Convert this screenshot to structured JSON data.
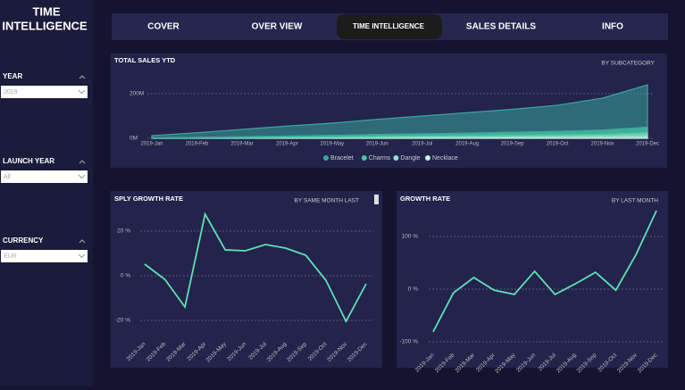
{
  "sidebar": {
    "title_lines": [
      "TIME",
      "INTELLIGENCE"
    ],
    "filters": [
      {
        "label": "YEAR",
        "value": "2019"
      },
      {
        "label": "LAUNCH YEAR",
        "value": "All"
      },
      {
        "label": "CURRENCY",
        "value": "EUR"
      }
    ]
  },
  "nav": {
    "items": [
      "COVER",
      "OVER VIEW",
      "TIME INTELLIGENCE",
      "SALES DETAILS",
      "INFO"
    ],
    "active": 2
  },
  "chart_data": [
    {
      "type": "area",
      "stacked": true,
      "title": "TOTAL SALES YTD",
      "subtitle": "BY SUBCATEGORY",
      "categories": [
        "2019-Jan",
        "2019-Feb",
        "2019-Mar",
        "2019-Apr",
        "2019-May",
        "2019-Jun",
        "2019-Jul",
        "2019-Aug",
        "2019-Sep",
        "2019-Oct",
        "2019-Nov",
        "2019-Dec"
      ],
      "series": [
        {
          "name": "Bracelet",
          "color": "#3aa59d",
          "values": [
            10,
            21,
            33,
            45,
            55,
            68,
            80,
            92,
            103,
            117,
            143,
            190
          ]
        },
        {
          "name": "Charms",
          "color": "#45c9a6",
          "values": [
            1,
            2,
            4,
            5,
            7,
            9,
            10,
            12,
            14,
            16,
            19,
            25
          ]
        },
        {
          "name": "Dangle",
          "color": "#8fe0c8",
          "values": [
            1,
            1,
            2,
            3,
            4,
            5,
            6,
            7,
            8,
            9,
            11,
            15
          ]
        },
        {
          "name": "Necklace",
          "color": "#c4f2e2",
          "values": [
            0,
            1,
            1,
            2,
            2,
            3,
            4,
            4,
            5,
            6,
            7,
            10
          ]
        }
      ],
      "ylim": [
        0,
        250
      ],
      "yticks": [
        {
          "value": 0,
          "label": "0M"
        },
        {
          "value": 200,
          "label": "200M"
        }
      ],
      "grid": true,
      "legend": "bottom"
    },
    {
      "type": "line",
      "title": "SPLY GROWTH RATE",
      "subtitle": "BY SAME MONTH LAST",
      "categories": [
        "2019-Jan",
        "2019-Feb",
        "2019-Mar",
        "2019-Apr",
        "2019-May",
        "2019-Jun",
        "2019-Jul",
        "2019-Aug",
        "2019-Sep",
        "2019-Oct",
        "2019-Nov",
        "2019-Dec"
      ],
      "values": [
        5.2,
        -1.6,
        -14,
        27.6,
        11.6,
        11.2,
        14,
        12.4,
        9.2,
        -2,
        -20.4,
        -3.6
      ],
      "color": "#5fe0b5",
      "ylim": [
        -27,
        32
      ],
      "yticks": [
        {
          "value": 20,
          "label": "20 %"
        },
        {
          "value": 0,
          "label": "0 %"
        },
        {
          "value": -20,
          "label": "-20 %"
        }
      ],
      "grid": true
    },
    {
      "type": "line",
      "title": "GROWTH RATE",
      "subtitle": "BY LAST MONTH",
      "categories": [
        "2019-Jan",
        "2019-Feb",
        "2019-Mar",
        "2019-Apr",
        "2019-May",
        "2019-Jun",
        "2019-Jul",
        "2019-Aug",
        "2019-Sep",
        "2019-Oct",
        "2019-Nov",
        "2019-Dec"
      ],
      "values": [
        -81,
        -7,
        22,
        -2,
        -10,
        34,
        -10,
        10,
        32,
        -2,
        66,
        149
      ],
      "color": "#5fe0b5",
      "ylim": [
        -110,
        160
      ],
      "yticks": [
        {
          "value": 100,
          "label": "100 %"
        },
        {
          "value": 0,
          "label": "0 %"
        },
        {
          "value": -100,
          "label": "-100 %"
        }
      ],
      "grid": true
    }
  ]
}
